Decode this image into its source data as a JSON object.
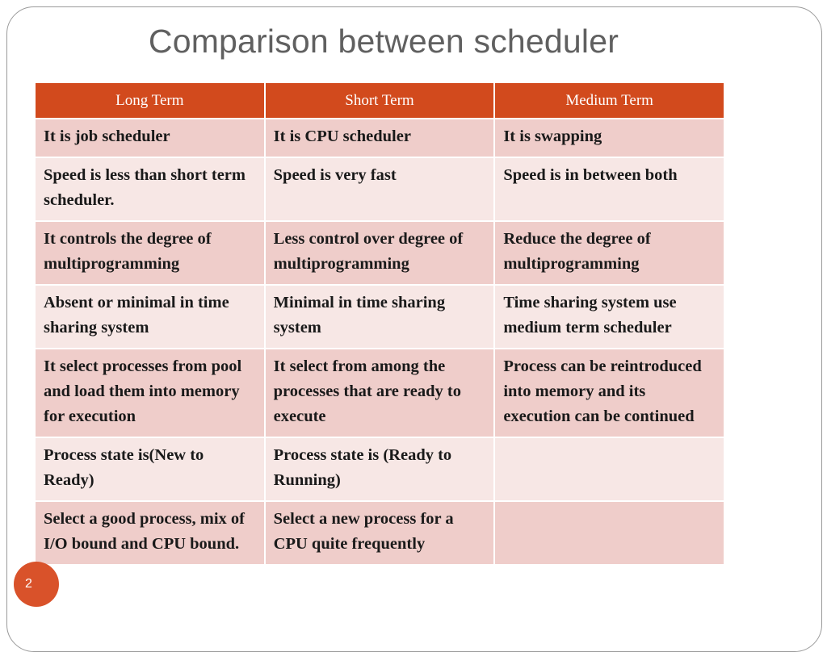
{
  "slide": {
    "title": "Comparison between scheduler",
    "page_number": "2"
  },
  "table": {
    "headers": [
      "Long Term",
      "Short Term",
      "Medium Term"
    ],
    "rows": [
      [
        "It is job scheduler",
        "It is CPU scheduler",
        "It is swapping"
      ],
      [
        "Speed is less than short term scheduler.",
        "Speed is very fast",
        "Speed is in between both"
      ],
      [
        "It controls the degree of multiprogramming",
        "Less control over degree of multiprogramming",
        "Reduce the degree of multiprogramming"
      ],
      [
        "Absent or minimal in time sharing system",
        "Minimal in time sharing system",
        "Time sharing system use medium term scheduler"
      ],
      [
        "It select processes from pool and load them into memory for execution",
        "It select from among the processes that are ready to execute",
        "Process can be reintroduced into memory and its execution can be continued"
      ],
      [
        "Process state is(New to Ready)",
        "Process state is (Ready to Running)",
        ""
      ],
      [
        "Select a good process, mix of I/O bound and CPU bound.",
        "Select a new process for a CPU quite frequently",
        ""
      ]
    ]
  },
  "colors": {
    "header_bg": "#d24a1d",
    "row_odd": "#efcdca",
    "row_even": "#f7e7e5",
    "badge": "#d9522a"
  }
}
